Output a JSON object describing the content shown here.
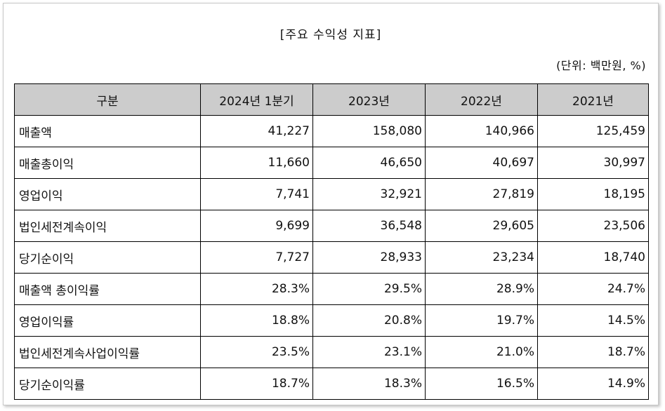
{
  "title": "[주요 수익성 지표]",
  "unit": "(단위: 백만원, %)",
  "table": {
    "headers": [
      "구분",
      "2024년 1분기",
      "2023년",
      "2022년",
      "2021년"
    ],
    "rows": [
      [
        "매출액",
        "41,227",
        "158,080",
        "140,966",
        "125,459"
      ],
      [
        "매출총이익",
        "11,660",
        "46,650",
        "40,697",
        "30,997"
      ],
      [
        "영업이익",
        "7,741",
        "32,921",
        "27,819",
        "18,195"
      ],
      [
        "법인세전계속이익",
        "9,699",
        "36,548",
        "29,605",
        "23,506"
      ],
      [
        "당기순이익",
        "7,727",
        "28,933",
        "23,234",
        "18,740"
      ],
      [
        "매출액 총이익률",
        "28.3%",
        "29.5%",
        "28.9%",
        "24.7%"
      ],
      [
        "영업이익률",
        "18.8%",
        "20.8%",
        "19.7%",
        "14.5%"
      ],
      [
        "법인세전계속사업이익률",
        "23.5%",
        "23.1%",
        "21.0%",
        "18.7%"
      ],
      [
        "당기순이익률",
        "18.7%",
        "18.3%",
        "16.5%",
        "14.9%"
      ]
    ]
  },
  "colors": {
    "header_bg": "#cccccc",
    "border": "#000000"
  }
}
